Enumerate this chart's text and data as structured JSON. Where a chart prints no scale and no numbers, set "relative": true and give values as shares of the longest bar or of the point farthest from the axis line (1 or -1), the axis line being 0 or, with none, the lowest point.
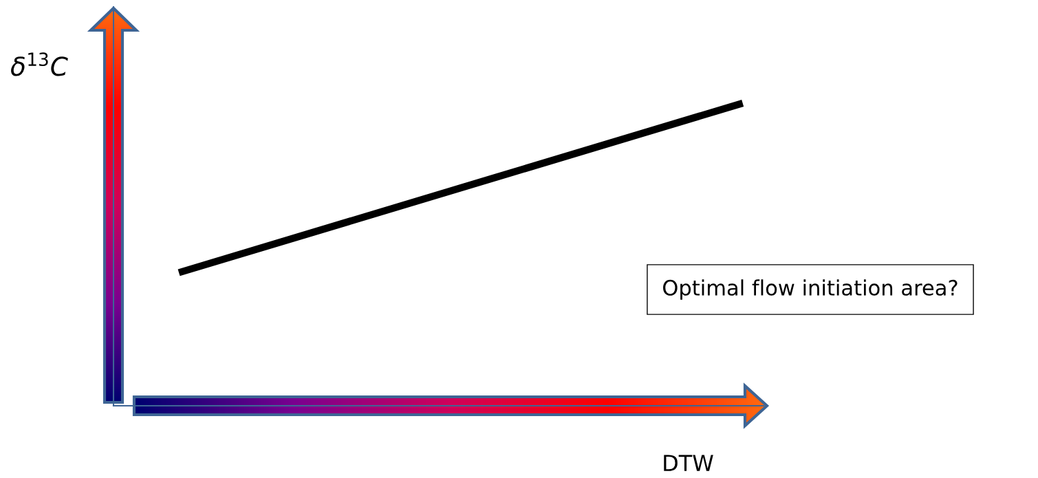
{
  "chart_data": {
    "type": "line",
    "relative": true,
    "categories": [
      null,
      null
    ],
    "series": [
      {
        "color": "#000000",
        "values": [
          0.44,
          1
        ]
      }
    ],
    "xlabel": "DTW",
    "ylabel": "δ$^{13}$C",
    "annotations": [
      "Optimal flow initiation area?"
    ],
    "marker": "none",
    "line_style": "solid"
  }
}
